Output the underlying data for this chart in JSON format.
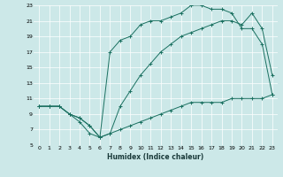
{
  "xlabel": "Humidex (Indice chaleur)",
  "background_color": "#cce8e8",
  "grid_color": "#ffffff",
  "line_color": "#1a7060",
  "xlim": [
    -0.5,
    23.5
  ],
  "ylim": [
    5,
    23
  ],
  "xticks": [
    0,
    1,
    2,
    3,
    4,
    5,
    6,
    7,
    8,
    9,
    10,
    11,
    12,
    13,
    14,
    15,
    16,
    17,
    18,
    19,
    20,
    21,
    22,
    23
  ],
  "yticks": [
    5,
    7,
    9,
    11,
    13,
    15,
    17,
    19,
    21,
    23
  ],
  "line1_x": [
    0,
    1,
    2,
    3,
    4,
    5,
    6,
    7,
    8,
    9,
    10,
    11,
    12,
    13,
    14,
    15,
    16,
    17,
    18,
    19,
    20,
    21,
    22,
    23
  ],
  "line1_y": [
    10,
    10,
    10,
    9,
    8.5,
    7.5,
    6,
    6.5,
    7,
    7.5,
    8,
    8.5,
    9,
    9.5,
    10,
    10.5,
    10.5,
    10.5,
    10.5,
    11,
    11,
    11,
    11,
    11.5
  ],
  "line2_x": [
    0,
    1,
    2,
    3,
    4,
    5,
    6,
    7,
    8,
    9,
    10,
    11,
    12,
    13,
    14,
    15,
    16,
    17,
    18,
    19,
    20,
    21,
    22,
    23
  ],
  "line2_y": [
    10,
    10,
    10,
    9,
    8,
    6.5,
    6,
    17,
    18.5,
    19,
    20.5,
    21,
    21,
    21.5,
    22,
    23,
    23,
    22.5,
    22.5,
    22,
    20,
    20,
    18,
    11.5
  ],
  "line3_x": [
    0,
    1,
    2,
    3,
    4,
    5,
    6,
    7,
    8,
    9,
    10,
    11,
    12,
    13,
    14,
    15,
    16,
    17,
    18,
    19,
    20,
    21,
    22,
    23
  ],
  "line3_y": [
    10,
    10,
    10,
    9,
    8.5,
    7.5,
    6,
    6.5,
    10,
    12,
    14,
    15.5,
    17,
    18,
    19,
    19.5,
    20,
    20.5,
    21,
    21,
    20.5,
    22,
    20,
    14
  ]
}
